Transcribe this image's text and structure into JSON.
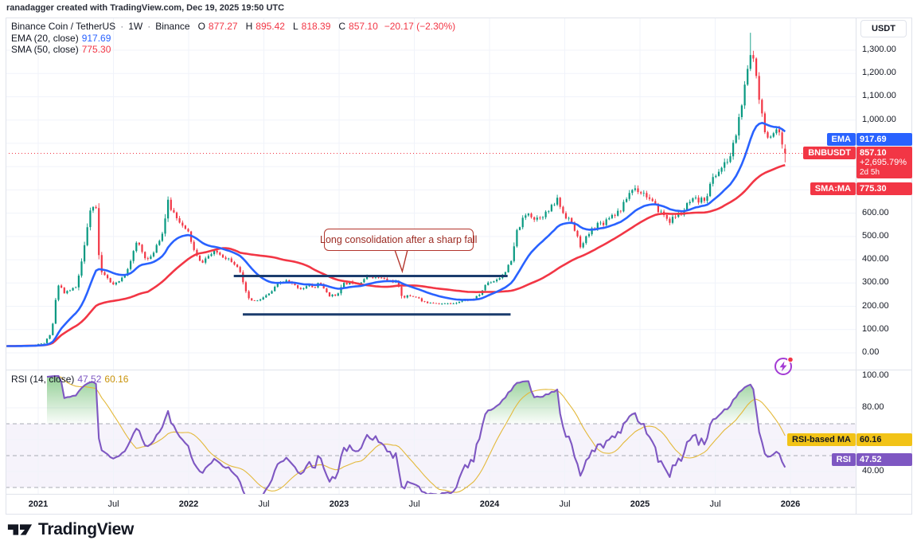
{
  "attribution": "ranadagger created with TradingView.com, Dec 19, 2025 19:50 UTC",
  "header": {
    "title": "Binance Coin / TetherUS",
    "separator": "·",
    "interval": "1W",
    "exchange": "Binance",
    "ohlc": {
      "o_label": "O",
      "o": "877.27",
      "h_label": "H",
      "h": "895.42",
      "l_label": "L",
      "l": "818.39",
      "c_label": "C",
      "c": "857.10",
      "change": "−20.17 (−2.30%)"
    },
    "ema_legend": {
      "label": "EMA (20, close)",
      "value": "917.69"
    },
    "sma_legend": {
      "label": "SMA (50, close)",
      "value": "775.30"
    }
  },
  "price_axis": {
    "unit_button": "USDT"
  },
  "badges": {
    "ema": {
      "label": "EMA",
      "value": "917.69"
    },
    "symbol": {
      "label": "BNBUSDT",
      "price": "857.10",
      "change_pct": "+2,695.79%",
      "countdown": "2d 5h"
    },
    "sma": {
      "label": "SMA:MA",
      "value": "775.30"
    }
  },
  "rsi_pane": {
    "legend": {
      "label": "RSI (14, close)",
      "rsi_value": "47.52",
      "ma_value": "60.16"
    },
    "badges": {
      "ma": {
        "label": "RSI-based MA",
        "value": "60.16"
      },
      "rsi": {
        "label": "RSI",
        "value": "47.52"
      }
    }
  },
  "annotation": {
    "text": "Long consolidation after a sharp fall"
  },
  "footer": {
    "logo_text": "TradingView"
  },
  "colors": {
    "up": "#089981",
    "down": "#F23645",
    "ema": "#2962FF",
    "sma": "#F23645",
    "rsi": "#7E57C2",
    "rsi_ma": "#E3B93B",
    "band": "#7E57C2",
    "overbought_fill": "#4caf50",
    "consolidation": "#1B3C6D",
    "annotation_border": "#B3352C",
    "current_line": "#F23645",
    "grid": "#F0F3FA",
    "frame": "#E0E3EB",
    "level_dash": "#9598a1",
    "axis_text": "#131722",
    "badge_yellow": "#F2C317",
    "lightning": "#A33BD4"
  },
  "chart_data": {
    "type": "candlestick",
    "symbol": "BNBUSDT",
    "interval": "1W",
    "quote_unit": "USDT",
    "title": "Binance Coin / TetherUS weekly with EMA(20), SMA(50) and RSI(14)",
    "current": {
      "open": 877.27,
      "high": 895.42,
      "low": 818.39,
      "close": 857.1,
      "change": -20.17,
      "change_pct": -2.3
    },
    "indicators": {
      "ema_period": 20,
      "ema_last": 917.69,
      "sma_period": 50,
      "sma_last": 775.3,
      "rsi_period": 14,
      "rsi_last": 47.52,
      "rsi_ma_period": 14,
      "rsi_ma_last": 60.16
    },
    "price_ticks": [
      0,
      100,
      200,
      300,
      400,
      500,
      600,
      700,
      800,
      900,
      1000,
      1100,
      1200,
      1300
    ],
    "rsi_ticks": [
      100,
      80,
      40
    ],
    "rsi_levels": [
      70,
      50,
      30
    ],
    "time_ticks": [
      {
        "label": "2021",
        "t": 2021,
        "major": true
      },
      {
        "label": "Jul",
        "t": 2021.5,
        "major": false
      },
      {
        "label": "2022",
        "t": 2022,
        "major": true
      },
      {
        "label": "Jul",
        "t": 2022.5,
        "major": false
      },
      {
        "label": "2023",
        "t": 2023,
        "major": true
      },
      {
        "label": "Jul",
        "t": 2023.5,
        "major": false
      },
      {
        "label": "2024",
        "t": 2024,
        "major": true
      },
      {
        "label": "Jul",
        "t": 2024.5,
        "major": false
      },
      {
        "label": "2025",
        "t": 2025,
        "major": true
      },
      {
        "label": "Jul",
        "t": 2025.5,
        "major": false
      },
      {
        "label": "2026",
        "t": 2026,
        "major": true
      }
    ],
    "seed": 11,
    "bars_per_year": 52.18,
    "t_start": 2020.79,
    "t_end": 2025.958,
    "peak_high": 1375,
    "close_anchors": [
      [
        2020.79,
        29
      ],
      [
        2020.88,
        31
      ],
      [
        2020.96,
        33
      ],
      [
        2021.0,
        38
      ],
      [
        2021.04,
        42
      ],
      [
        2021.09,
        90
      ],
      [
        2021.12,
        250
      ],
      [
        2021.14,
        300
      ],
      [
        2021.17,
        255
      ],
      [
        2021.21,
        270
      ],
      [
        2021.25,
        280
      ],
      [
        2021.3,
        420
      ],
      [
        2021.33,
        560
      ],
      [
        2021.36,
        640
      ],
      [
        2021.385,
        620
      ],
      [
        2021.41,
        345
      ],
      [
        2021.45,
        330
      ],
      [
        2021.49,
        290
      ],
      [
        2021.53,
        300
      ],
      [
        2021.58,
        340
      ],
      [
        2021.62,
        410
      ],
      [
        2021.66,
        480
      ],
      [
        2021.7,
        420
      ],
      [
        2021.74,
        395
      ],
      [
        2021.79,
        470
      ],
      [
        2021.83,
        520
      ],
      [
        2021.86,
        650
      ],
      [
        2021.89,
        610
      ],
      [
        2021.93,
        580
      ],
      [
        2021.97,
        530
      ],
      [
        2022.0,
        515
      ],
      [
        2022.04,
        430
      ],
      [
        2022.08,
        385
      ],
      [
        2022.13,
        415
      ],
      [
        2022.18,
        435
      ],
      [
        2022.23,
        415
      ],
      [
        2022.28,
        400
      ],
      [
        2022.33,
        370
      ],
      [
        2022.36,
        300
      ],
      [
        2022.4,
        230
      ],
      [
        2022.45,
        220
      ],
      [
        2022.49,
        235
      ],
      [
        2022.54,
        255
      ],
      [
        2022.6,
        300
      ],
      [
        2022.65,
        310
      ],
      [
        2022.7,
        290
      ],
      [
        2022.75,
        275
      ],
      [
        2022.8,
        290
      ],
      [
        2022.84,
        280
      ],
      [
        2022.87,
        310
      ],
      [
        2022.9,
        270
      ],
      [
        2022.94,
        245
      ],
      [
        2022.98,
        248
      ],
      [
        2023.03,
        295
      ],
      [
        2023.08,
        305
      ],
      [
        2023.13,
        300
      ],
      [
        2023.18,
        325
      ],
      [
        2023.23,
        330
      ],
      [
        2023.28,
        320
      ],
      [
        2023.33,
        310
      ],
      [
        2023.38,
        305
      ],
      [
        2023.42,
        240
      ],
      [
        2023.47,
        245
      ],
      [
        2023.52,
        240
      ],
      [
        2023.56,
        215
      ],
      [
        2023.6,
        218
      ],
      [
        2023.65,
        215
      ],
      [
        2023.7,
        210
      ],
      [
        2023.75,
        212
      ],
      [
        2023.8,
        222
      ],
      [
        2023.85,
        228
      ],
      [
        2023.9,
        232
      ],
      [
        2023.94,
        255
      ],
      [
        2023.98,
        300
      ],
      [
        2024.03,
        310
      ],
      [
        2024.07,
        325
      ],
      [
        2024.11,
        355
      ],
      [
        2024.15,
        400
      ],
      [
        2024.18,
        520
      ],
      [
        2024.22,
        570
      ],
      [
        2024.26,
        605
      ],
      [
        2024.3,
        575
      ],
      [
        2024.34,
        590
      ],
      [
        2024.38,
        600
      ],
      [
        2024.42,
        630
      ],
      [
        2024.45,
        660
      ],
      [
        2024.49,
        600
      ],
      [
        2024.53,
        575
      ],
      [
        2024.57,
        520
      ],
      [
        2024.61,
        450
      ],
      [
        2024.64,
        490
      ],
      [
        2024.68,
        530
      ],
      [
        2024.72,
        555
      ],
      [
        2024.76,
        560
      ],
      [
        2024.8,
        590
      ],
      [
        2024.84,
        600
      ],
      [
        2024.88,
        620
      ],
      [
        2024.92,
        680
      ],
      [
        2024.96,
        710
      ],
      [
        2025.0,
        695
      ],
      [
        2025.04,
        680
      ],
      [
        2025.08,
        645
      ],
      [
        2025.12,
        615
      ],
      [
        2025.16,
        590
      ],
      [
        2025.2,
        565
      ],
      [
        2025.24,
        590
      ],
      [
        2025.28,
        600
      ],
      [
        2025.32,
        640
      ],
      [
        2025.36,
        655
      ],
      [
        2025.4,
        650
      ],
      [
        2025.44,
        670
      ],
      [
        2025.48,
        745
      ],
      [
        2025.52,
        780
      ],
      [
        2025.56,
        805
      ],
      [
        2025.6,
        845
      ],
      [
        2025.64,
        945
      ],
      [
        2025.68,
        1080
      ],
      [
        2025.71,
        1180
      ],
      [
        2025.74,
        1300
      ],
      [
        2025.77,
        1220
      ],
      [
        2025.8,
        1060
      ],
      [
        2025.83,
        965
      ],
      [
        2025.86,
        905
      ],
      [
        2025.89,
        930
      ],
      [
        2025.92,
        950
      ],
      [
        2025.945,
        885
      ],
      [
        2025.958,
        857
      ]
    ],
    "consolidation_lines": {
      "upper": {
        "t1": 2022.3,
        "t2": 2024.12,
        "price": 330
      },
      "lower": {
        "t1": 2022.36,
        "t2": 2024.14,
        "price": 165
      }
    },
    "annotation": {
      "text": "Long consolidation after a sharp fall",
      "box_t_center": 2023.39,
      "box_price_top": 530,
      "tip_t": 2023.42,
      "tip_price": 350
    }
  }
}
